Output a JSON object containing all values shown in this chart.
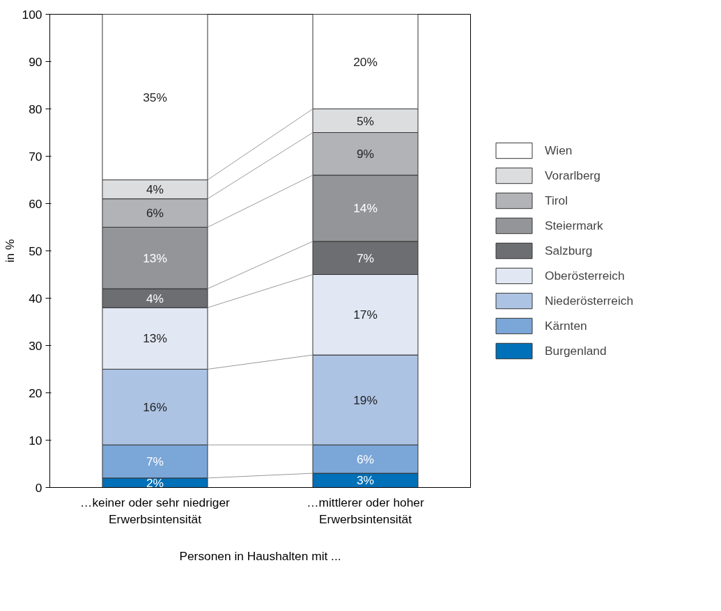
{
  "chart_data": {
    "type": "bar",
    "stacked": true,
    "xlabel": "Personen in Haushalten mit ...",
    "ylabel": "in %",
    "categories": [
      "…keiner oder sehr niedriger Erwerbsintensität",
      "…mittlerer oder hoher Erwerbsintensität"
    ],
    "series": [
      {
        "name": "Burgenland",
        "color": "#0070b8",
        "values": [
          2,
          3
        ],
        "value_labels": [
          "2%",
          "3%"
        ]
      },
      {
        "name": "Kärnten",
        "color": "#7ba6d8",
        "values": [
          7,
          6
        ],
        "value_labels": [
          "7%",
          "6%"
        ]
      },
      {
        "name": "Niederösterreich",
        "color": "#adc3e4",
        "values": [
          16,
          19
        ],
        "value_labels": [
          "16%",
          "19%"
        ]
      },
      {
        "name": "Oberösterreich",
        "color": "#e1e8f4",
        "values": [
          13,
          17
        ],
        "value_labels": [
          "13%",
          "17%"
        ]
      },
      {
        "name": "Salzburg",
        "color": "#6d6e71",
        "values": [
          4,
          7
        ],
        "value_labels": [
          "4%",
          "7%"
        ]
      },
      {
        "name": "Steiermark",
        "color": "#939598",
        "values": [
          13,
          14
        ],
        "value_labels": [
          "13%",
          "14%"
        ]
      },
      {
        "name": "Tirol",
        "color": "#b1b3b6",
        "values": [
          6,
          9
        ],
        "value_labels": [
          "6%",
          "9%"
        ]
      },
      {
        "name": "Vorarlberg",
        "color": "#dcddde",
        "values": [
          4,
          5
        ],
        "value_labels": [
          "4%",
          "5%"
        ]
      },
      {
        "name": "Wien",
        "color": "#ffffff",
        "values": [
          35,
          20
        ],
        "value_labels": [
          "35%",
          "20%"
        ]
      }
    ],
    "ylim": [
      0,
      100
    ],
    "yticks": [
      0,
      10,
      20,
      30,
      40,
      50,
      60,
      70,
      80,
      90,
      100
    ],
    "grid": false,
    "legend": "right"
  }
}
